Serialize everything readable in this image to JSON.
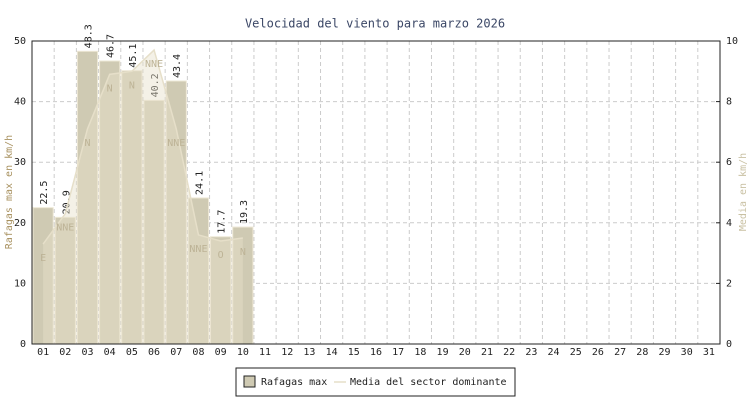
{
  "chart_data": {
    "type": "bar-line",
    "title": "Velocidad del viento para marzo 2026",
    "y_label": "Rafagas max en km/h",
    "y2_label": "Media en km/h",
    "categories": [
      "01",
      "02",
      "03",
      "04",
      "05",
      "06",
      "07",
      "08",
      "09",
      "10",
      "11",
      "12",
      "13",
      "14",
      "15",
      "16",
      "17",
      "18",
      "19",
      "20",
      "21",
      "22",
      "23",
      "24",
      "25",
      "26",
      "27",
      "28",
      "29",
      "30",
      "31"
    ],
    "ylim": [
      0,
      50
    ],
    "yticks": [
      0,
      10,
      20,
      30,
      40,
      50
    ],
    "y2lim": [
      0,
      10
    ],
    "y2ticks": [
      0,
      2,
      4,
      6,
      8,
      10
    ],
    "grid": true,
    "series": [
      {
        "name": "Rafagas max",
        "type": "bar",
        "color": "#cfcab3",
        "values": [
          22.5,
          20.9,
          48.3,
          46.7,
          45.1,
          40.2,
          43.4,
          24.1,
          17.7,
          19.3,
          null,
          null,
          null,
          null,
          null,
          null,
          null,
          null,
          null,
          null,
          null,
          null,
          null,
          null,
          null,
          null,
          null,
          null,
          null,
          null,
          null
        ]
      },
      {
        "name": "Media del sector dominante",
        "type": "line",
        "axis": "y2",
        "color": "#e6dfc9",
        "values": [
          3.3,
          4.3,
          7.1,
          8.9,
          9.0,
          9.7,
          7.1,
          3.6,
          3.4,
          3.5,
          null,
          null,
          null,
          null,
          null,
          null,
          null,
          null,
          null,
          null,
          null,
          null,
          null,
          null,
          null,
          null,
          null,
          null,
          null,
          null,
          null
        ],
        "point_labels": [
          "E",
          "NNE",
          "N",
          "N",
          "N",
          "NNE",
          "NNE",
          "NNE",
          "O",
          "N",
          null,
          null,
          null,
          null,
          null,
          null,
          null,
          null,
          null,
          null,
          null,
          null,
          null,
          null,
          null,
          null,
          null,
          null,
          null,
          null,
          null
        ]
      }
    ]
  }
}
